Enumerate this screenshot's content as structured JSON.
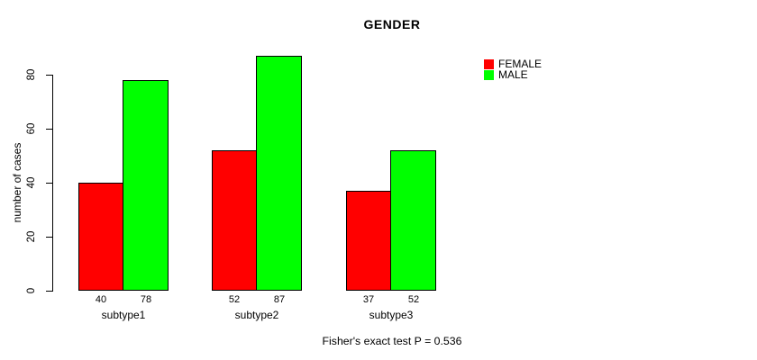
{
  "title": "GENDER",
  "y_axis": {
    "label": "number of cases",
    "ticks": [
      0,
      20,
      40,
      60,
      80
    ]
  },
  "legend": {
    "entries": [
      {
        "label": "FEMALE",
        "color": "#FF0000"
      },
      {
        "label": "MALE",
        "color": "#00FF00"
      }
    ]
  },
  "footer": {
    "text": "Fisher's exact test P = 0.536"
  },
  "chart_data": {
    "type": "bar",
    "title": "GENDER",
    "categories": [
      "subtype1",
      "subtype2",
      "subtype3"
    ],
    "series": [
      {
        "name": "FEMALE",
        "color": "#FF0000",
        "values": [
          40,
          52,
          37
        ]
      },
      {
        "name": "MALE",
        "color": "#00FF00",
        "values": [
          78,
          87,
          52
        ]
      }
    ],
    "value_labels": true,
    "xlabel": "",
    "ylabel": "number of cases",
    "ylim": [
      0,
      87
    ],
    "axis_ticks": [
      0,
      20,
      40,
      60,
      80
    ],
    "grid": false,
    "legend_position": "right",
    "bar_border_color": "#000000",
    "background": "#FFFFFF",
    "annotation": "Fisher's exact test P = 0.536"
  }
}
